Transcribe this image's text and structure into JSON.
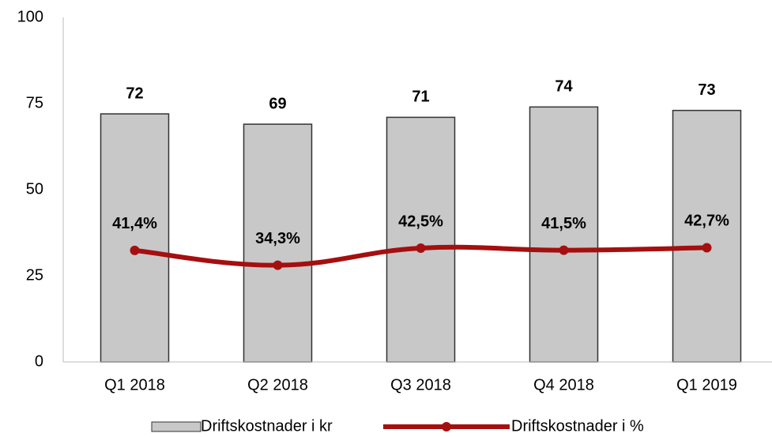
{
  "chart_data": {
    "type": "bar",
    "categories": [
      "Q1 2018",
      "Q2 2018",
      "Q3 2018",
      "Q4 2018",
      "Q1 2019"
    ],
    "ylim": [
      0,
      100
    ],
    "yticks": [
      0,
      25,
      50,
      75,
      100
    ],
    "grid": false,
    "y2lim": [
      -12,
      153
    ],
    "series": [
      {
        "name": "Driftskostnader i kr",
        "type": "bar",
        "color": "#c8c8c8",
        "values": [
          72,
          69,
          71,
          74,
          73
        ]
      },
      {
        "name": "Driftskostnader i %",
        "type": "line",
        "axis": "y2",
        "color": "#a50f0f",
        "values": [
          41.4,
          34.3,
          42.5,
          41.5,
          42.7
        ],
        "value_labels": [
          "41,4%",
          "34,3%",
          "42,5%",
          "41,5%",
          "42,7%"
        ]
      }
    ],
    "legend": "bottom"
  }
}
